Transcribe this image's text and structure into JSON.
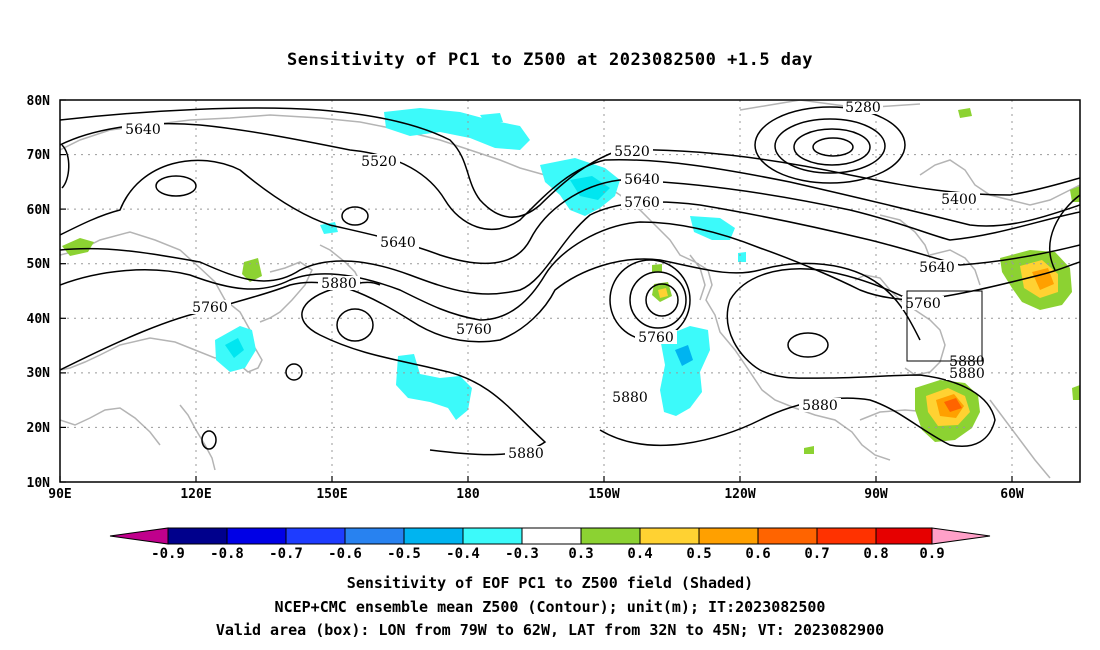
{
  "title": "Sensitivity of PC1 to Z500 at 2023082500 +1.5 day",
  "lat_labels": [
    "80N",
    "70N",
    "60N",
    "50N",
    "40N",
    "30N",
    "20N",
    "10N"
  ],
  "lon_labels": [
    "90E",
    "120E",
    "150E",
    "180",
    "150W",
    "120W",
    "90W",
    "60W"
  ],
  "contour_labels": [
    "5280",
    "5400",
    "5520",
    "5520",
    "5640",
    "5640",
    "5640",
    "5640",
    "5760",
    "5760",
    "5760",
    "5760",
    "5760",
    "5880",
    "5880",
    "5880",
    "5880",
    "5880",
    "5880"
  ],
  "colorbar": {
    "labels": [
      "-0.9",
      "-0.8",
      "-0.7",
      "-0.6",
      "-0.5",
      "-0.4",
      "-0.3",
      "0.3",
      "0.4",
      "0.5",
      "0.6",
      "0.7",
      "0.8",
      "0.9"
    ],
    "colors": [
      "#c0008c",
      "#00008c",
      "#0000e6",
      "#1e3cff",
      "#2882f0",
      "#00b4f0",
      "#00e6f0",
      "#3cfafa",
      "#ffffff",
      "#8cd232",
      "#ffd232",
      "#ffa000",
      "#ff6400",
      "#ff3200",
      "#e60000",
      "#ffa0c8"
    ]
  },
  "valid_box": {
    "lon_from": "79W",
    "lon_to": "62W",
    "lat_from": "32N",
    "lat_to": "45N"
  },
  "captions": {
    "line1": "Sensitivity of EOF PC1 to Z500 field (Shaded)",
    "line2": "NCEP+CMC ensemble mean Z500 (Contour); unit(m); IT:2023082500",
    "line3": "Valid area (box): LON from 79W to 62W, LAT from 32N to 45N; VT: 2023082900"
  }
}
